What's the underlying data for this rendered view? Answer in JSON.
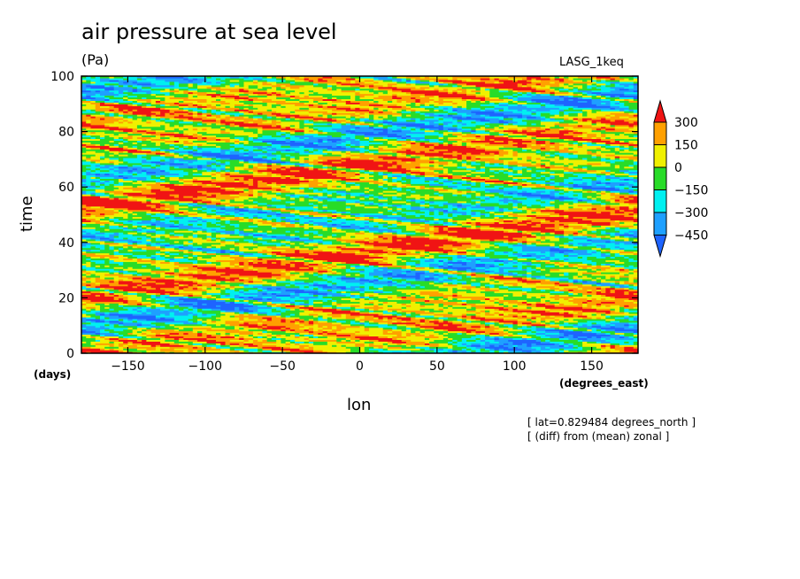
{
  "chart_data": {
    "type": "heatmap",
    "title": "air pressure at sea level",
    "units": "(Pa)",
    "source_label": "LASG_1keq",
    "xlabel": "lon",
    "x_unit": "(degrees_east)",
    "ylabel": "time",
    "y_unit": "(days)",
    "xlim": [
      -180,
      180
    ],
    "ylim": [
      0,
      100
    ],
    "x_ticks": [
      -150,
      -100,
      -50,
      0,
      50,
      100,
      150
    ],
    "y_ticks": [
      0,
      20,
      40,
      60,
      80,
      100
    ],
    "colorbar": {
      "levels": [
        -450,
        -300,
        -150,
        0,
        150,
        300
      ],
      "tick_labels": [
        "300",
        "150",
        "0",
        "−150",
        "−300",
        "−450"
      ],
      "colors": [
        "#1e64ff",
        "#1ea0ff",
        "#00f0f0",
        "#28dc28",
        "#f0f000",
        "#ffa000",
        "#f01414"
      ]
    },
    "notes": [
      "[ lat=0.829484 degrees_north ]",
      "[ (diff) from (mean) zonal ]"
    ],
    "grid": false
  }
}
